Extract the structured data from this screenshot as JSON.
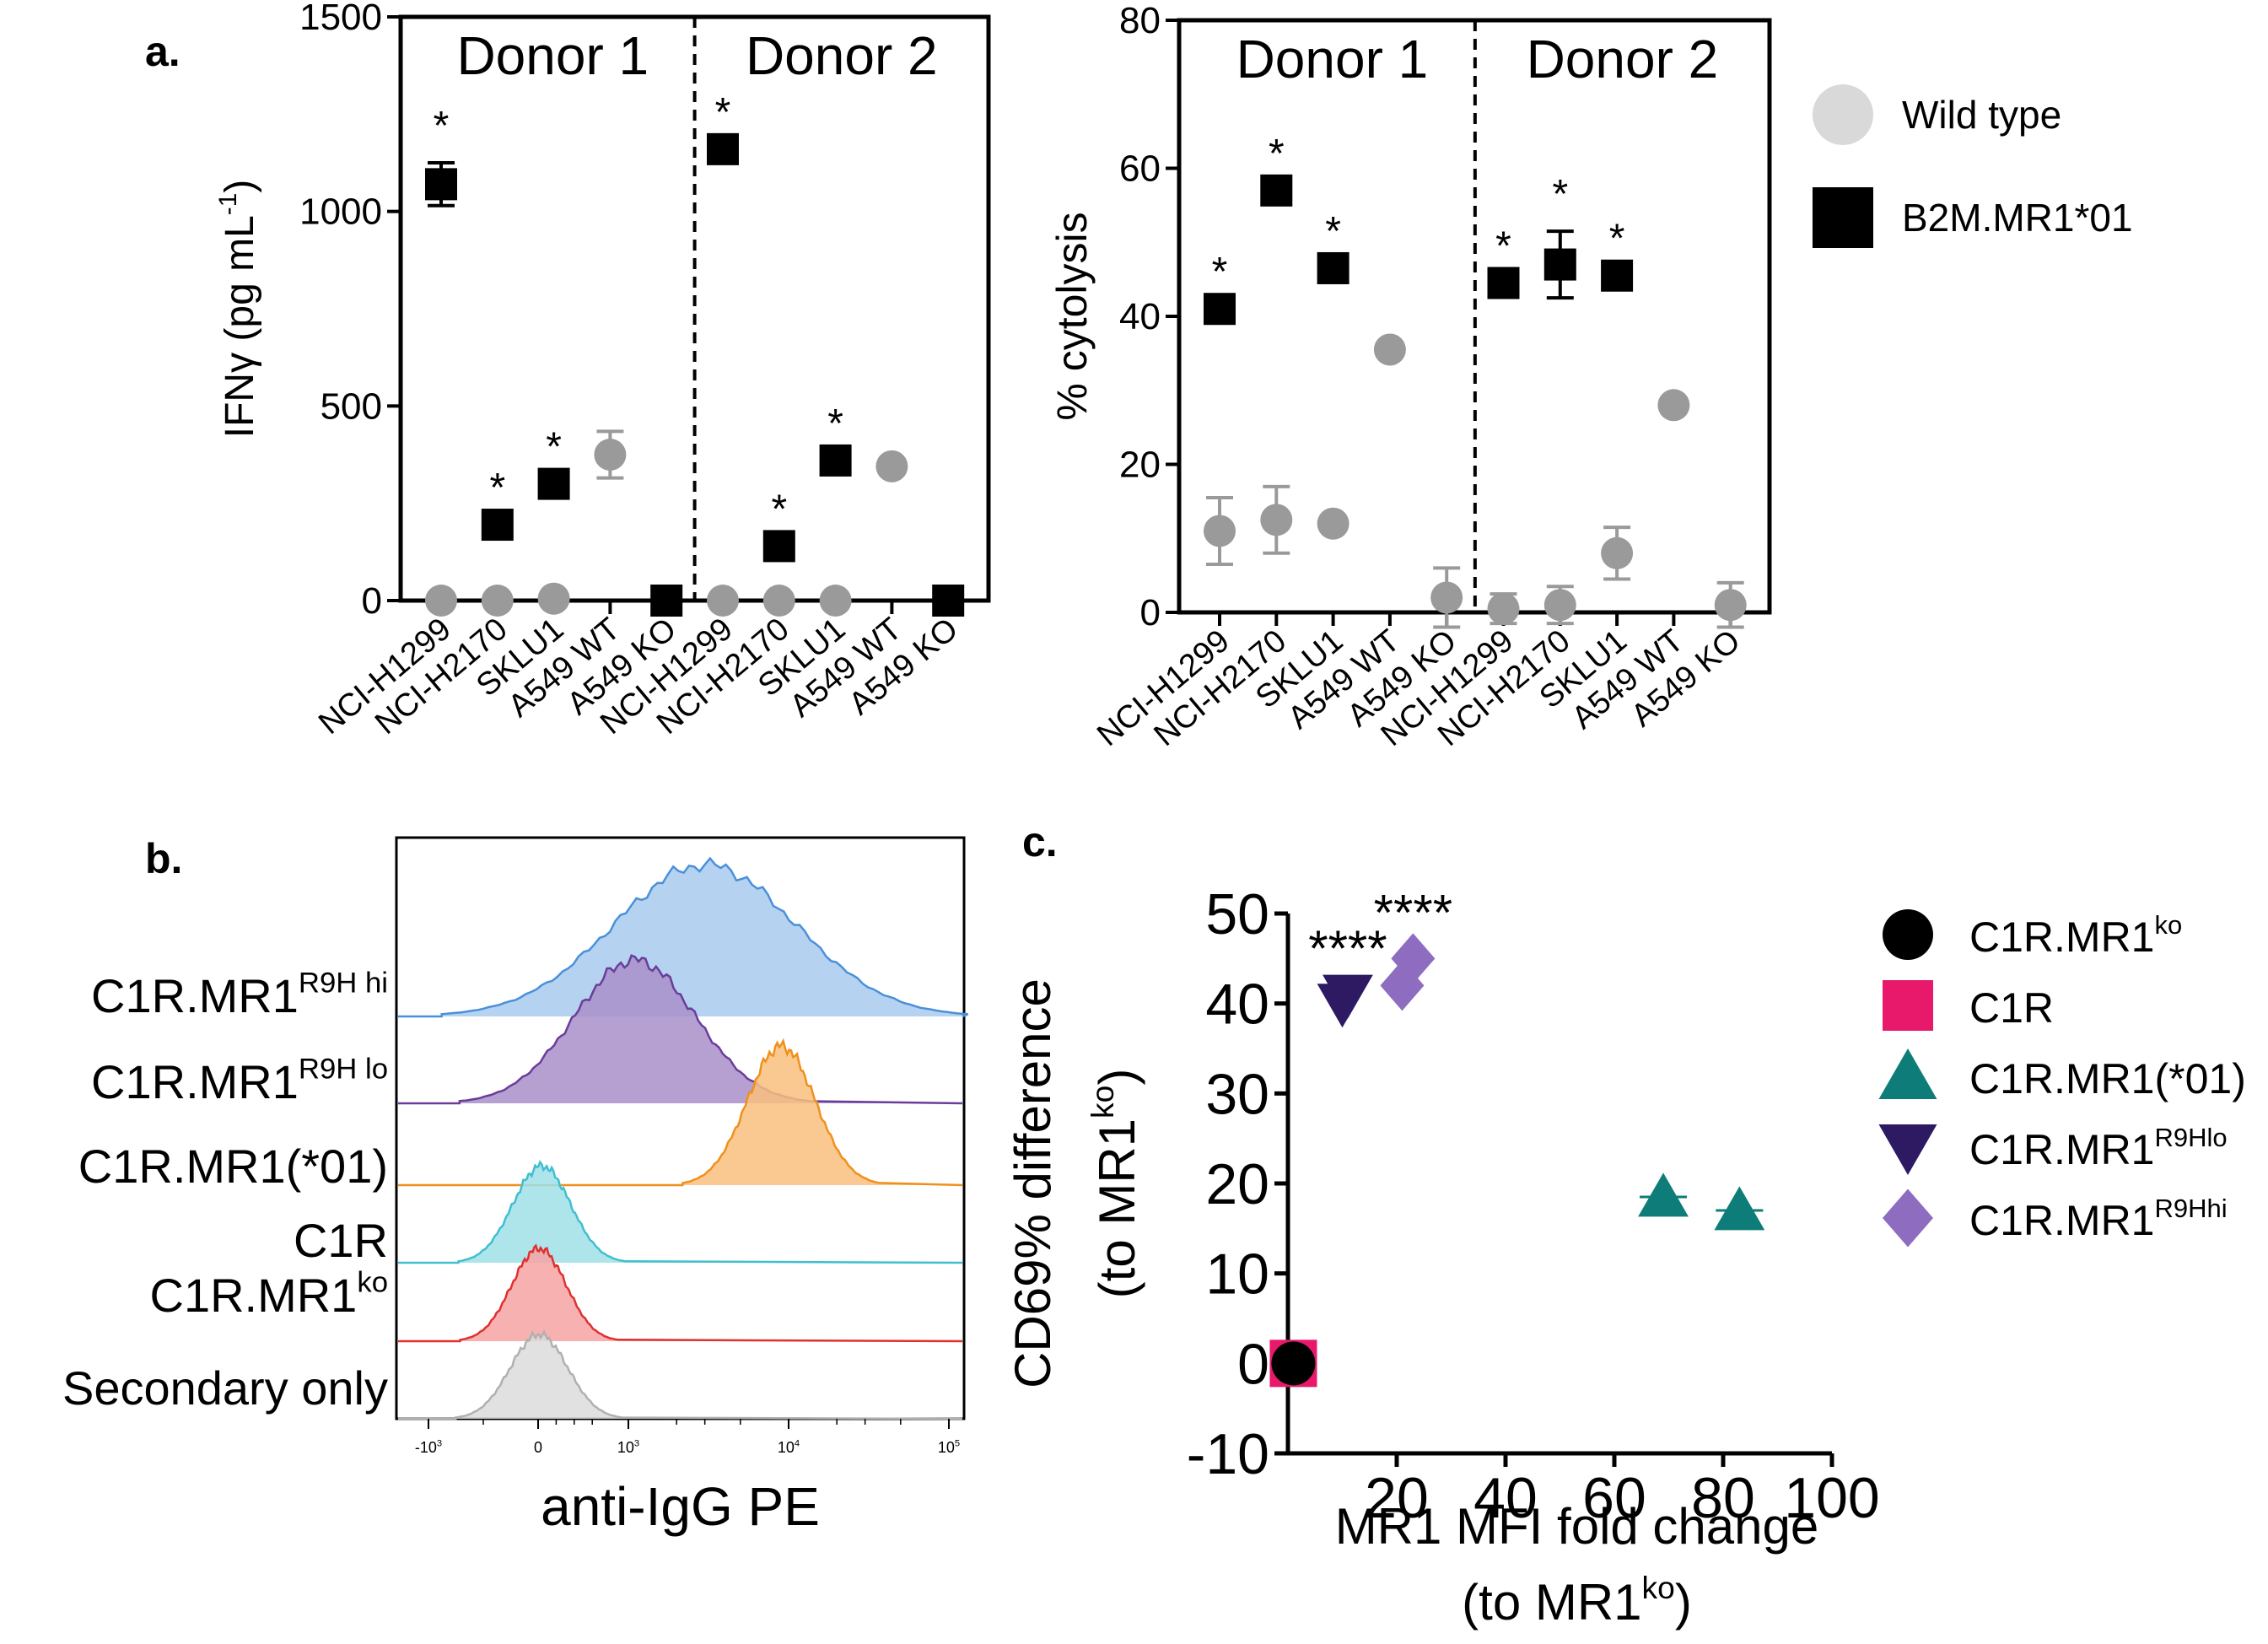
{
  "panel_labels": {
    "a": "a.",
    "b": "b.",
    "c": "c."
  },
  "colors": {
    "black": "#000000",
    "grey": "#9a9a9a",
    "legend_grey": "#d9d9d9",
    "teal": "#0e7c78",
    "navy": "#2e1a63",
    "lilac": "#8e6cc0",
    "pink": "#e8186a"
  },
  "chart_data": [
    {
      "id": "ifng",
      "type": "scatter",
      "ylabel_main": "IFNγ (pg mL",
      "ylabel_sup": "-1",
      "ylabel_close": ")",
      "ylim": [
        0,
        1500
      ],
      "yticks": [
        "0",
        "500",
        "1000",
        "1500"
      ],
      "ytick_values": [
        0,
        500,
        1000,
        1500
      ],
      "groups": [
        "Donor 1",
        "Donor 2"
      ],
      "categories": [
        "NCI-H1299",
        "NCI-H2170",
        "SKLU1",
        "A549 WT",
        "A549 KO",
        "NCI-H1299",
        "NCI-H2170",
        "SKLU1",
        "A549 WT",
        "A549 KO"
      ],
      "series": [
        {
          "name": "B2M.MR1*01",
          "marker": "square",
          "values": [
            1070,
            195,
            300,
            null,
            0,
            1160,
            140,
            360,
            null,
            0
          ],
          "err": [
            55,
            0,
            0,
            null,
            0,
            0,
            0,
            0,
            null,
            0
          ]
        },
        {
          "name": "Wild type",
          "marker": "circle",
          "values": [
            0,
            0,
            5,
            375,
            null,
            0,
            0,
            0,
            345,
            null
          ],
          "err": [
            0,
            0,
            0,
            60,
            null,
            0,
            0,
            0,
            0,
            null
          ]
        }
      ],
      "significance": [
        "*",
        "*",
        "*",
        "",
        "",
        "*",
        "*",
        "*",
        "",
        ""
      ]
    },
    {
      "id": "cytolysis",
      "type": "scatter",
      "ylabel": "% cytolysis",
      "ylim": [
        0,
        80
      ],
      "yticks": [
        "0",
        "20",
        "40",
        "60",
        "80"
      ],
      "ytick_values": [
        0,
        20,
        40,
        60,
        80
      ],
      "groups": [
        "Donor 1",
        "Donor 2"
      ],
      "categories": [
        "NCI-H1299",
        "NCI-H2170",
        "SKLU1",
        "A549 WT",
        "A549 KO",
        "NCI-H1299",
        "NCI-H2170",
        "SKLU1",
        "A549 WT",
        "A549 KO"
      ],
      "series": [
        {
          "name": "B2M.MR1*01",
          "marker": "square",
          "values": [
            41,
            57,
            46.5,
            null,
            null,
            44.5,
            47,
            45.5,
            null,
            null
          ],
          "err": [
            0,
            0,
            0,
            null,
            null,
            0,
            4.5,
            0,
            null,
            null
          ]
        },
        {
          "name": "Wild type",
          "marker": "circle",
          "values": [
            11,
            12.5,
            12,
            35.5,
            2,
            0.5,
            1,
            8,
            28,
            1
          ],
          "err": [
            4.5,
            4.5,
            0,
            0,
            4,
            2,
            2.5,
            3.5,
            0,
            3
          ]
        }
      ],
      "significance": [
        "*",
        "*",
        "*",
        "",
        "",
        "*",
        "*",
        "*",
        "",
        ""
      ],
      "legend": [
        {
          "label": "Wild type",
          "marker": "circle"
        },
        {
          "label": "B2M.MR1*01",
          "marker": "square"
        }
      ]
    },
    {
      "id": "histogram",
      "type": "histogram",
      "xlabel": "anti-IgG PE",
      "xticks": [
        {
          "base": "-10",
          "exp": "3",
          "value": -1000
        },
        {
          "base": "0",
          "exp": "",
          "value": 0
        },
        {
          "base": "10",
          "exp": "3",
          "value": 1000
        },
        {
          "base": "10",
          "exp": "4",
          "value": 10000
        },
        {
          "base": "10",
          "exp": "5",
          "value": 100000
        }
      ],
      "tracks": [
        {
          "label": "C1R.MR1",
          "sup": "R9H hi",
          "color": "#4a90d9",
          "fill": "#a8cbef",
          "peak": 3000
        },
        {
          "label": "C1R.MR1",
          "sup": "R9H lo",
          "color": "#6a3d9a",
          "fill": "#a88fc9",
          "peak": 1100
        },
        {
          "label": "C1R.MR1(*01)",
          "sup": "",
          "color": "#f0901c",
          "fill": "#f9c07e",
          "peak": 9000
        },
        {
          "label": "C1R",
          "sup": "",
          "color": "#3fbfd0",
          "fill": "#9fe0e8",
          "peak": 40
        },
        {
          "label": "C1R.MR1",
          "sup": "ko",
          "color": "#e03030",
          "fill": "#f7a3a3",
          "peak": 10
        },
        {
          "label": "Secondary only",
          "sup": "",
          "color": "#b0b0b0",
          "fill": "#dcdcdc",
          "peak": 10
        }
      ]
    },
    {
      "id": "fold",
      "type": "scatter",
      "xlabel": "MR1 MFI fold change",
      "xlabel2_open": "(to MR1",
      "xlabel2_sup": "ko",
      "xlabel2_close": ")",
      "ylabel_line1": "CD69% difference",
      "ylabel_line2_open": "(to MR1",
      "ylabel_line2_sup": "ko",
      "ylabel_line2_close": ")",
      "xlim": [
        0,
        100
      ],
      "ylim": [
        -10,
        50
      ],
      "xticks": [
        "20",
        "40",
        "60",
        "80",
        "100"
      ],
      "xtick_values": [
        20,
        40,
        60,
        80,
        100
      ],
      "yticks": [
        "-10",
        "0",
        "10",
        "20",
        "30",
        "40",
        "50"
      ],
      "ytick_values": [
        -10,
        0,
        10,
        20,
        30,
        40,
        50
      ],
      "series": [
        {
          "name": "C1R.MR1",
          "sup": "ko",
          "marker": "circle",
          "color": "#000000",
          "points": [
            [
              1,
              0
            ]
          ]
        },
        {
          "name": "C1R",
          "sup": "",
          "marker": "square",
          "color": "#e8186a",
          "points": [
            [
              1,
              0
            ]
          ]
        },
        {
          "name": "C1R.MR1(*01)",
          "sup": "",
          "marker": "triangle-up",
          "color": "#0e7c78",
          "points": [
            [
              69,
              18.5
            ],
            [
              83,
              17
            ]
          ]
        },
        {
          "name": "C1R.MR1",
          "sup": "R9Hlo",
          "marker": "triangle-down",
          "color": "#2e1a63",
          "points": [
            [
              10,
              40
            ],
            [
              11,
              41
            ]
          ]
        },
        {
          "name": "C1R.MR1",
          "sup": "R9Hhi",
          "marker": "diamond",
          "color": "#8e6cc0",
          "points": [
            [
              21,
              42
            ],
            [
              23,
              45
            ]
          ]
        }
      ],
      "annotations": [
        {
          "text": "****",
          "x": 11,
          "y": 41
        },
        {
          "text": "****",
          "x": 23,
          "y": 45
        }
      ]
    }
  ]
}
